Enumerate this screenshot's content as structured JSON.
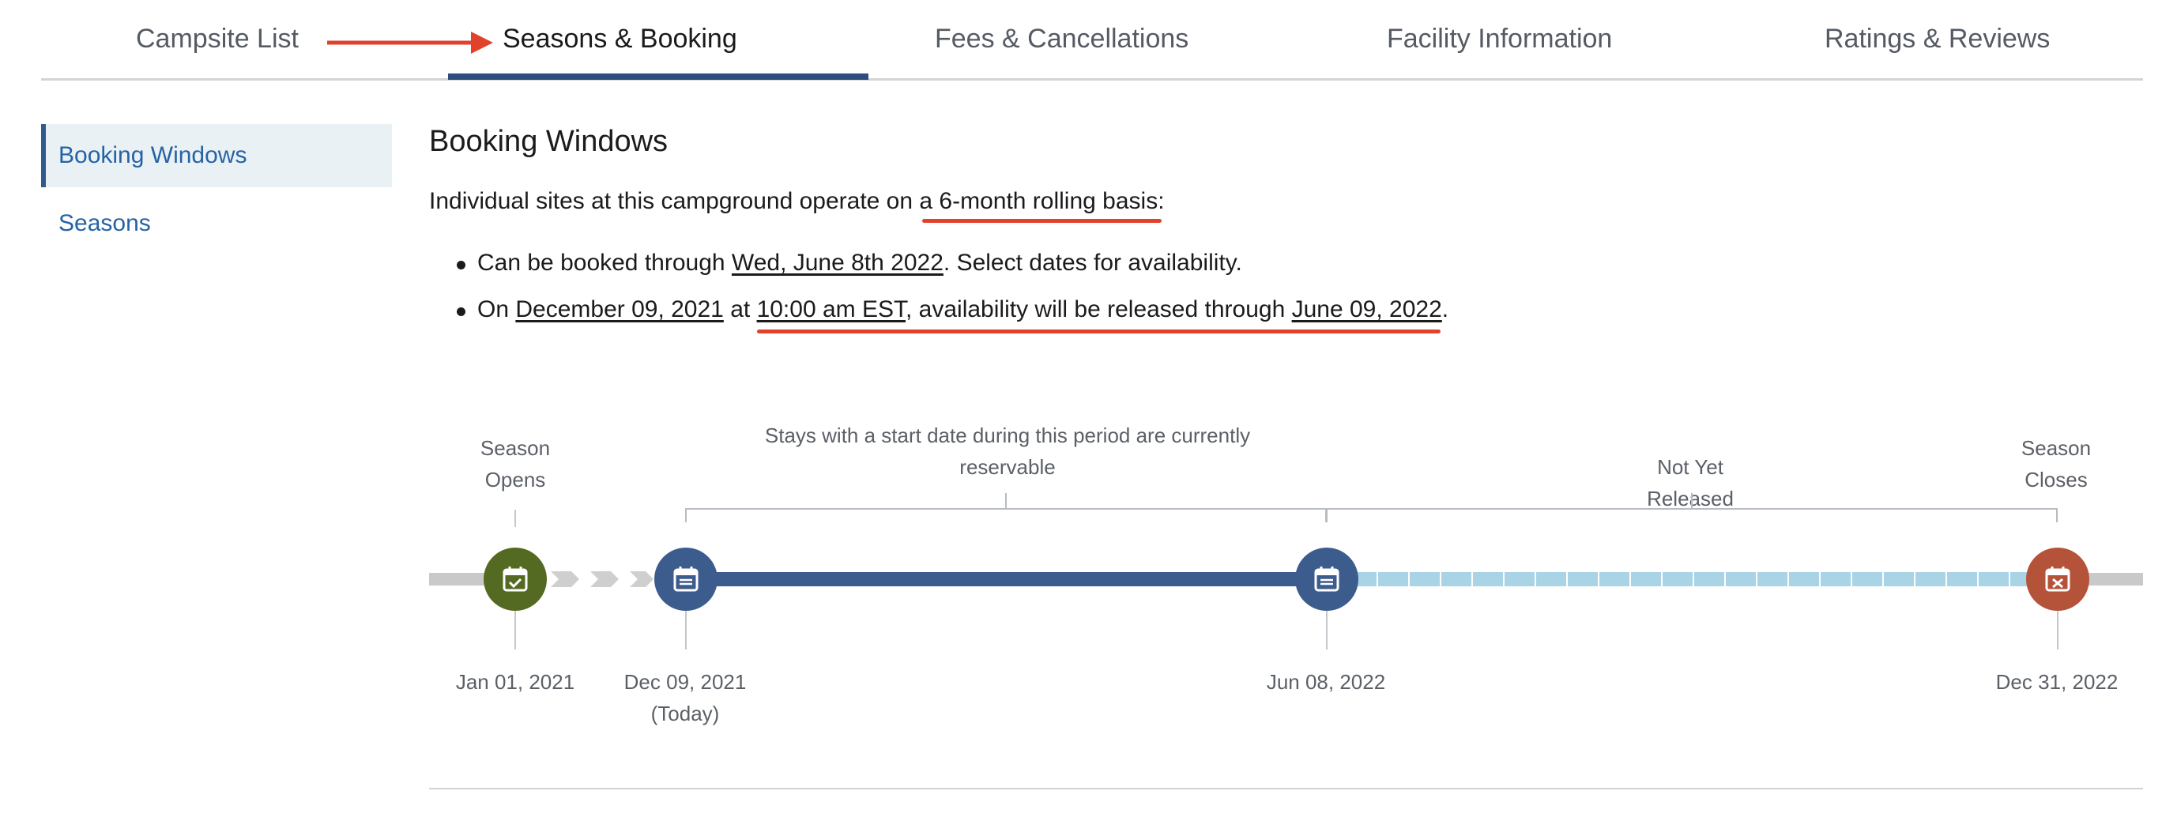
{
  "tabs": [
    {
      "label": "Campsite List"
    },
    {
      "label": "Seasons & Booking"
    },
    {
      "label": "Fees & Cancellations"
    },
    {
      "label": "Facility Information"
    },
    {
      "label": "Ratings & Reviews"
    }
  ],
  "active_tab": "Seasons & Booking",
  "sidebar": {
    "items": [
      {
        "label": "Booking Windows",
        "active": true
      },
      {
        "label": "Seasons",
        "active": false
      }
    ]
  },
  "main": {
    "title": "Booking Windows",
    "intro_prefix": "Individual sites at this campground operate on a ",
    "intro_emph": "6-month rolling basis:",
    "bullet1": {
      "prefix": "Can be booked through ",
      "date": "Wed, June 8th 2022",
      "suffix": ". Select dates for availability."
    },
    "bullet2": {
      "prefix": "On ",
      "date1": "December 09, 2021",
      "mid1": " at ",
      "time": "10:00 am EST",
      "mid2": ", availability will be released through ",
      "date2": "June 09, 2022",
      "suffix": "."
    }
  },
  "timeline": {
    "season_opens": {
      "line1": "Season",
      "line2": "Opens",
      "date": "Jan 01, 2021"
    },
    "reservable": {
      "line1": "Stays with a start date during this period are currently",
      "line2": "reservable"
    },
    "today": {
      "date": "Dec 09, 2021",
      "note": "(Today)"
    },
    "release_end": {
      "date": "Jun 08, 2022"
    },
    "not_released": {
      "label": "Not Yet Released"
    },
    "season_closes": {
      "line1": "Season",
      "line2": "Closes",
      "date": "Dec 31, 2022"
    }
  },
  "icons": {
    "season_opens": "calendar-check-icon",
    "today": "calendar-icon",
    "release_end": "calendar-icon",
    "season_closes": "calendar-x-icon"
  },
  "colors": {
    "open_node": "#546a22",
    "booking_node": "#3d5c8e",
    "close_node": "#b5533a",
    "reservable_bar": "#3d5c8e",
    "not_released_bar": "#a8d4e6",
    "annotation_red": "#e2412b",
    "link_blue": "#2762a5"
  }
}
